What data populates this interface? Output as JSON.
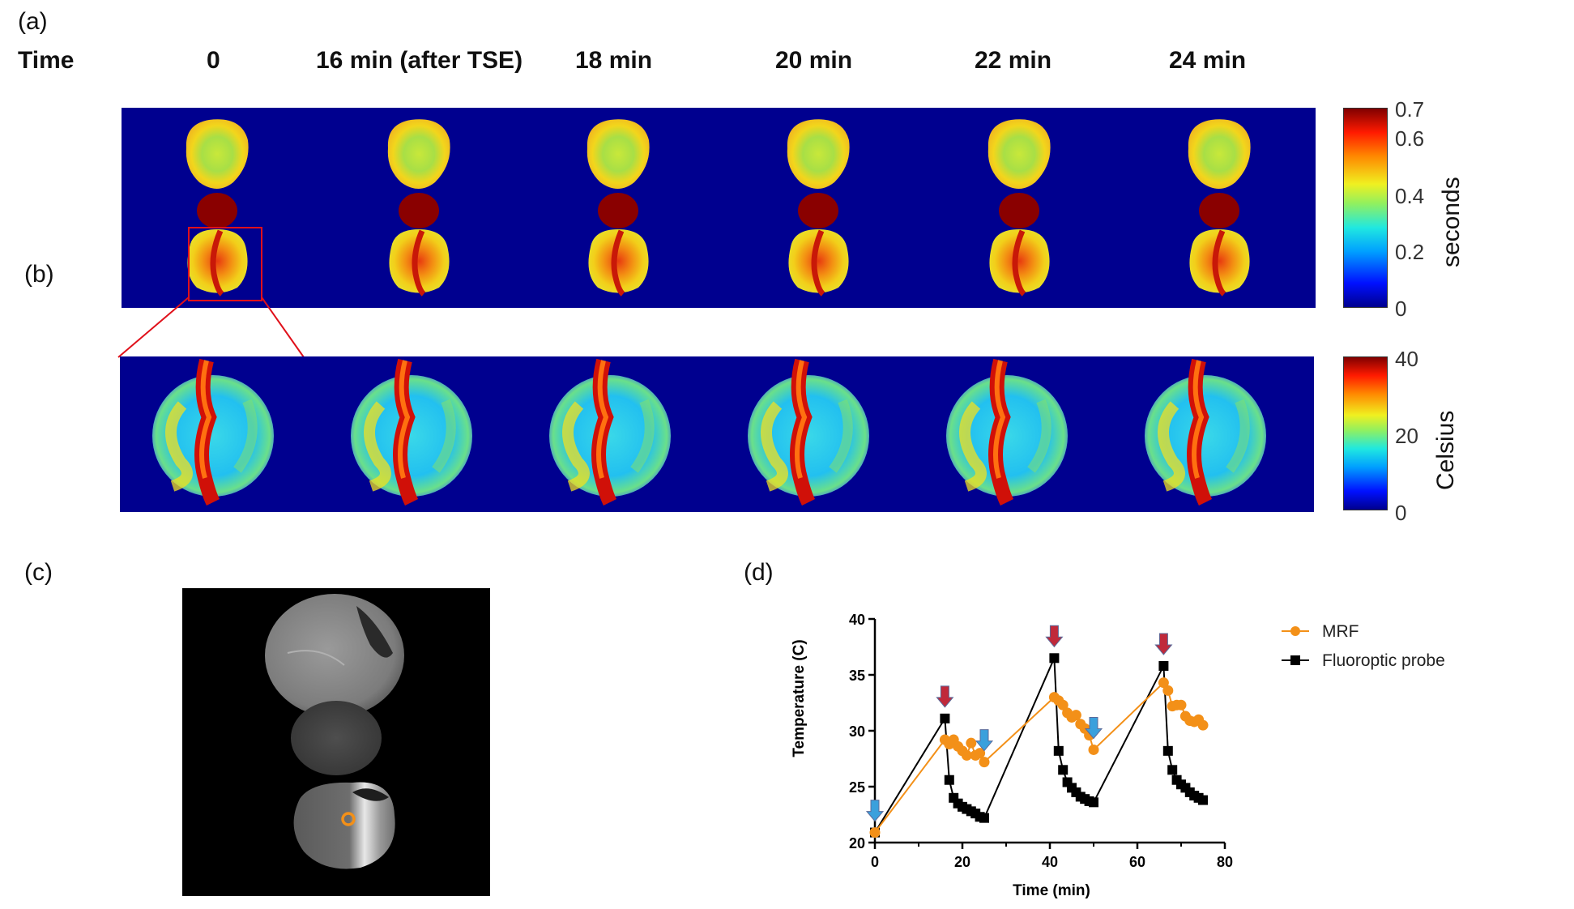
{
  "panel_labels": {
    "a": "(a)",
    "b": "(b)",
    "c": "(c)",
    "d": "(d)"
  },
  "time_header": {
    "label": "Time",
    "columns": [
      "0",
      "16 min (after TSE)",
      "18 min",
      "20 min",
      "22 min",
      "24 min"
    ]
  },
  "colorbar_a": {
    "title": "seconds",
    "ticks": [
      "0.7",
      "0.6",
      "0.4",
      "0.2",
      "0"
    ]
  },
  "colorbar_b": {
    "title": "Celsius",
    "ticks": [
      "40",
      "20",
      "0"
    ]
  },
  "colors": {
    "mrf": "#f39018",
    "probe": "#000000",
    "map_background": "#00008f",
    "heat_arrow": "#c0293a",
    "cool_arrow": "#3aa0dc"
  },
  "chart_data": {
    "type": "line",
    "xlabel": "Time (min)",
    "ylabel": "Temperature (C)",
    "xlim": [
      0,
      80
    ],
    "ylim": [
      20,
      40
    ],
    "xticks": [
      0,
      20,
      40,
      60,
      80
    ],
    "yticks": [
      20,
      25,
      30,
      35,
      40
    ],
    "legend_position": "right",
    "series": [
      {
        "name": "MRF",
        "color": "#f39018",
        "marker": "circle",
        "points": [
          [
            0,
            20.9
          ],
          [
            16,
            29.2
          ],
          [
            17,
            28.8
          ],
          [
            18,
            29.2
          ],
          [
            19,
            28.6
          ],
          [
            20,
            28.2
          ],
          [
            21,
            27.8
          ],
          [
            22,
            28.9
          ],
          [
            23,
            27.8
          ],
          [
            24,
            28.0
          ],
          [
            25,
            27.2
          ],
          [
            41,
            33.0
          ],
          [
            42,
            32.7
          ],
          [
            43,
            32.3
          ],
          [
            44,
            31.6
          ],
          [
            45,
            31.2
          ],
          [
            46,
            31.4
          ],
          [
            47,
            30.6
          ],
          [
            48,
            30.2
          ],
          [
            49,
            29.6
          ],
          [
            50,
            28.3
          ],
          [
            66,
            34.3
          ],
          [
            67,
            33.6
          ],
          [
            68,
            32.2
          ],
          [
            69,
            32.3
          ],
          [
            70,
            32.3
          ],
          [
            71,
            31.3
          ],
          [
            72,
            30.9
          ],
          [
            73,
            30.8
          ],
          [
            74,
            31.0
          ],
          [
            75,
            30.5
          ]
        ]
      },
      {
        "name": "Fluoroptic probe",
        "color": "#000000",
        "marker": "square",
        "points": [
          [
            0,
            20.9
          ],
          [
            16,
            31.1
          ],
          [
            17,
            25.6
          ],
          [
            18,
            24.0
          ],
          [
            19,
            23.5
          ],
          [
            20,
            23.2
          ],
          [
            21,
            23.0
          ],
          [
            22,
            22.8
          ],
          [
            23,
            22.6
          ],
          [
            24,
            22.3
          ],
          [
            25,
            22.2
          ],
          [
            41,
            36.5
          ],
          [
            42,
            28.2
          ],
          [
            43,
            26.5
          ],
          [
            44,
            25.4
          ],
          [
            45,
            24.9
          ],
          [
            46,
            24.5
          ],
          [
            47,
            24.1
          ],
          [
            48,
            23.9
          ],
          [
            49,
            23.7
          ],
          [
            50,
            23.6
          ],
          [
            66,
            35.8
          ],
          [
            67,
            28.2
          ],
          [
            68,
            26.5
          ],
          [
            69,
            25.6
          ],
          [
            70,
            25.2
          ],
          [
            71,
            24.9
          ],
          [
            72,
            24.5
          ],
          [
            73,
            24.2
          ],
          [
            74,
            24.0
          ],
          [
            75,
            23.8
          ]
        ]
      }
    ],
    "annotations": [
      {
        "type": "heating-arrow",
        "x": 16,
        "y": 31.1
      },
      {
        "type": "heating-arrow",
        "x": 41,
        "y": 36.5
      },
      {
        "type": "heating-arrow",
        "x": 66,
        "y": 35.8
      },
      {
        "type": "cooling-arrow",
        "x": 0,
        "y": 20.9
      },
      {
        "type": "cooling-arrow",
        "x": 25,
        "y": 27.2
      },
      {
        "type": "cooling-arrow",
        "x": 50,
        "y": 28.3
      }
    ]
  }
}
